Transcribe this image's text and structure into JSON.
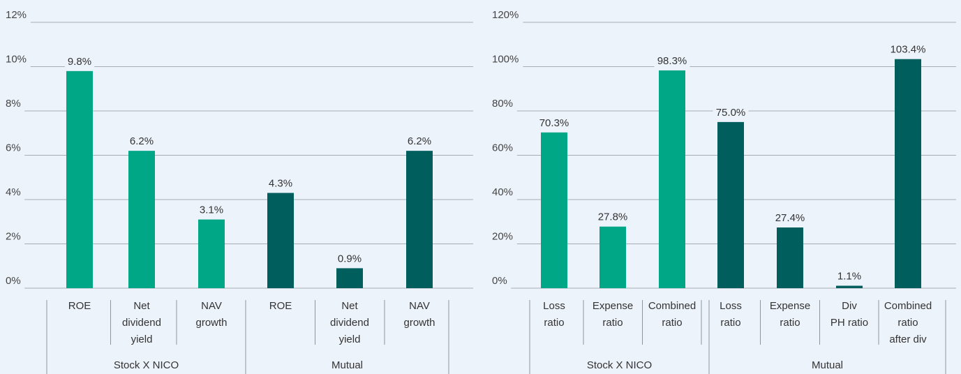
{
  "colors": {
    "stock": "#00a787",
    "mutual": "#005e5d",
    "grid": "#a6adb6",
    "axis": "#8c949c",
    "background": "#edf3fb"
  },
  "chart_data": [
    {
      "type": "bar",
      "title": "",
      "ylim": [
        0,
        12
      ],
      "yticks": [
        0,
        2,
        4,
        6,
        8,
        10,
        12
      ],
      "ytick_labels": [
        "0%",
        "2%",
        "4%",
        "6%",
        "8%",
        "10%",
        "12%"
      ],
      "grid": true,
      "groups": [
        {
          "name": "Stock X NICO",
          "color_key": "stock",
          "categories": [
            [
              "ROE"
            ],
            [
              "Net",
              "dividend",
              "yield"
            ],
            [
              "NAV",
              "growth"
            ]
          ],
          "values": [
            9.8,
            6.2,
            3.1
          ],
          "labels": [
            "9.8%",
            "6.2%",
            "3.1%"
          ]
        },
        {
          "name": "Mutual",
          "color_key": "mutual",
          "categories": [
            [
              "ROE"
            ],
            [
              "Net",
              "dividend",
              "yield"
            ],
            [
              "NAV",
              "growth"
            ]
          ],
          "values": [
            4.3,
            0.9,
            6.2
          ],
          "labels": [
            "4.3%",
            "0.9%",
            "6.2%"
          ]
        }
      ]
    },
    {
      "type": "bar",
      "title": "",
      "ylim": [
        0,
        120
      ],
      "yticks": [
        0,
        20,
        40,
        60,
        80,
        100,
        120
      ],
      "ytick_labels": [
        "0%",
        "20%",
        "40%",
        "60%",
        "80%",
        "100%",
        "120%"
      ],
      "grid": true,
      "groups": [
        {
          "name": "Stock X NICO",
          "color_key": "stock",
          "categories": [
            [
              "Loss",
              "ratio"
            ],
            [
              "Expense",
              "ratio"
            ],
            [
              "Combined",
              "ratio"
            ]
          ],
          "values": [
            70.3,
            27.8,
            98.3
          ],
          "labels": [
            "70.3%",
            "27.8%",
            "98.3%"
          ]
        },
        {
          "name": "Mutual",
          "color_key": "mutual",
          "categories": [
            [
              "Loss",
              "ratio"
            ],
            [
              "Expense",
              "ratio"
            ],
            [
              "Div",
              "PH ratio"
            ],
            [
              "Combined",
              "ratio",
              "after div"
            ]
          ],
          "values": [
            75.0,
            27.4,
            1.1,
            103.4
          ],
          "labels": [
            "75.0%",
            "27.4%",
            "1.1%",
            "103.4%"
          ]
        }
      ]
    }
  ]
}
